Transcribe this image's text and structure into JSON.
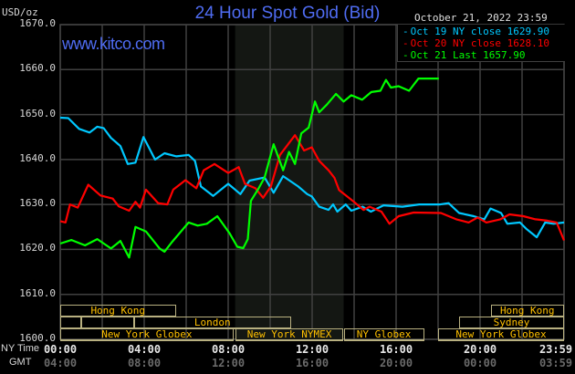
{
  "header": {
    "title": "24 Hour Spot Gold (Bid)",
    "brand": "www.kitco.com",
    "units": "USD/oz",
    "datestamp": "October 21, 2022 23:59"
  },
  "legend": [
    {
      "label": "Oct 19 NY close 1629.90",
      "color": "#00c8ff"
    },
    {
      "label": "Oct 20 NY close 1628.10",
      "color": "#ff0000"
    },
    {
      "label": "Oct 21 Last 1657.90",
      "color": "#00ff00"
    }
  ],
  "colors": {
    "background": "#000000",
    "grid": "#404040",
    "nymex_shade": "#141713",
    "session_border": "#b8b080",
    "session_text": "#ffc000",
    "title": "#4f6cf2"
  },
  "x_axis": {
    "row_labels": {
      "ny": "NY Time",
      "gmt": "GMT"
    },
    "ticks": [
      {
        "ny": "00:00",
        "gmt": "04:00"
      },
      {
        "ny": "04:00",
        "gmt": "08:00"
      },
      {
        "ny": "08:00",
        "gmt": "12:00"
      },
      {
        "ny": "12:00",
        "gmt": "16:00"
      },
      {
        "ny": "16:00",
        "gmt": "20:00"
      },
      {
        "ny": "20:00",
        "gmt": "00:00"
      },
      {
        "ny": "23:59",
        "gmt": "03:59"
      }
    ]
  },
  "sessions": [
    {
      "label": "Hong Kong",
      "start": "00:00",
      "end": "05:30",
      "row": 0
    },
    {
      "label": "Hong Kong",
      "start": "20:30",
      "end": "23:59",
      "row": 0
    },
    {
      "label": "",
      "start": "00:00",
      "end": "01:00",
      "row": 1
    },
    {
      "label": "",
      "start": "01:00",
      "end": "03:30",
      "row": 1
    },
    {
      "label": "London",
      "start": "03:30",
      "end": "11:00",
      "row": 1
    },
    {
      "label": "Sydney",
      "start": "19:00",
      "end": "23:59",
      "row": 1
    },
    {
      "label": "New York Globex",
      "start": "00:00",
      "end": "08:15",
      "row": 2
    },
    {
      "label": "New York NYMEX",
      "start": "08:20",
      "end": "13:30",
      "row": 2
    },
    {
      "label": "NY Globex",
      "start": "13:30",
      "end": "17:20",
      "row": 2
    },
    {
      "label": "New York Globex",
      "start": "18:00",
      "end": "23:59",
      "row": 2
    }
  ],
  "chart_data": {
    "type": "line",
    "title": "24 Hour Spot Gold (Bid)",
    "ylabel": "USD/oz",
    "xlabel": "NY Time",
    "ylim": [
      1600,
      1670
    ],
    "yticks": [
      "1670.0",
      "1660.0",
      "1650.0",
      "1640.0",
      "1630.0",
      "1620.0",
      "1610.0",
      "1600.0"
    ],
    "xlim": [
      "00:00",
      "23:59"
    ],
    "grid": true,
    "legend_position": "top-right",
    "nymex_shaded": [
      "08:20",
      "13:30"
    ],
    "series": [
      {
        "name": "Oct 19 NY close 1629.90",
        "color": "#00c8ff",
        "points": [
          [
            "00:00",
            1649.3
          ],
          [
            "00:23",
            1649.2
          ],
          [
            "00:54",
            1646.8
          ],
          [
            "01:24",
            1646
          ],
          [
            "01:46",
            1647.3
          ],
          [
            "02:04",
            1647
          ],
          [
            "02:25",
            1644.8
          ],
          [
            "02:52",
            1643
          ],
          [
            "03:13",
            1639
          ],
          [
            "03:35",
            1639.3
          ],
          [
            "03:58",
            1645
          ],
          [
            "04:31",
            1640
          ],
          [
            "04:58",
            1641.4
          ],
          [
            "05:32",
            1640.7
          ],
          [
            "06:07",
            1641
          ],
          [
            "06:25",
            1639.7
          ],
          [
            "06:42",
            1634
          ],
          [
            "07:17",
            1631.9
          ],
          [
            "08:00",
            1634.6
          ],
          [
            "08:35",
            1632.3
          ],
          [
            "09:01",
            1635.3
          ],
          [
            "09:44",
            1636
          ],
          [
            "10:10",
            1632.6
          ],
          [
            "10:37",
            1636.3
          ],
          [
            "11:20",
            1634
          ],
          [
            "11:46",
            1632.3
          ],
          [
            "11:59",
            1631.8
          ],
          [
            "12:20",
            1629.5
          ],
          [
            "12:47",
            1628.8
          ],
          [
            "13:00",
            1630
          ],
          [
            "13:12",
            1628.4
          ],
          [
            "13:36",
            1630
          ],
          [
            "13:52",
            1628.6
          ],
          [
            "14:24",
            1629.5
          ],
          [
            "14:48",
            1628.4
          ],
          [
            "15:24",
            1629.8
          ],
          [
            "16:18",
            1629.5
          ],
          [
            "17:06",
            1630
          ],
          [
            "18:06",
            1630
          ],
          [
            "18:30",
            1630.3
          ],
          [
            "19:00",
            1628.1
          ],
          [
            "19:42",
            1627.4
          ],
          [
            "20:12",
            1626.7
          ],
          [
            "20:30",
            1629.1
          ],
          [
            "21:00",
            1628.1
          ],
          [
            "21:18",
            1625.7
          ],
          [
            "21:54",
            1626
          ],
          [
            "22:12",
            1624.6
          ],
          [
            "22:42",
            1622.7
          ],
          [
            "23:06",
            1626
          ],
          [
            "23:30",
            1625.7
          ],
          [
            "23:59",
            1626
          ]
        ]
      },
      {
        "name": "Oct 20 NY close 1628.10",
        "color": "#ff0000",
        "points": [
          [
            "00:00",
            1626.3
          ],
          [
            "00:15",
            1626
          ],
          [
            "00:28",
            1630
          ],
          [
            "00:50",
            1629.3
          ],
          [
            "01:20",
            1634.4
          ],
          [
            "01:55",
            1632
          ],
          [
            "02:30",
            1631.3
          ],
          [
            "02:47",
            1629.6
          ],
          [
            "03:17",
            1628.6
          ],
          [
            "03:35",
            1630.6
          ],
          [
            "03:48",
            1629.3
          ],
          [
            "04:05",
            1633.3
          ],
          [
            "04:40",
            1630.3
          ],
          [
            "05:06",
            1630
          ],
          [
            "05:23",
            1633.3
          ],
          [
            "05:58",
            1635.4
          ],
          [
            "06:29",
            1633.6
          ],
          [
            "06:50",
            1637.6
          ],
          [
            "07:21",
            1639
          ],
          [
            "08:00",
            1637
          ],
          [
            "08:30",
            1638.3
          ],
          [
            "08:48",
            1634.6
          ],
          [
            "09:18",
            1633.6
          ],
          [
            "09:40",
            1631.5
          ],
          [
            "10:02",
            1634
          ],
          [
            "10:28",
            1641
          ],
          [
            "11:11",
            1645.4
          ],
          [
            "11:37",
            1642
          ],
          [
            "11:59",
            1642.7
          ],
          [
            "12:20",
            1639.7
          ],
          [
            "12:47",
            1637.6
          ],
          [
            "13:04",
            1635.9
          ],
          [
            "13:17",
            1633.2
          ],
          [
            "13:56",
            1630.8
          ],
          [
            "14:27",
            1628.8
          ],
          [
            "14:44",
            1629.5
          ],
          [
            "15:18",
            1628.4
          ],
          [
            "15:41",
            1625.7
          ],
          [
            "16:07",
            1627.4
          ],
          [
            "16:50",
            1628.2
          ],
          [
            "18:08",
            1628.1
          ],
          [
            "18:52",
            1626.7
          ],
          [
            "19:27",
            1626
          ],
          [
            "19:53",
            1627.1
          ],
          [
            "20:18",
            1626
          ],
          [
            "20:58",
            1626.7
          ],
          [
            "21:24",
            1627.8
          ],
          [
            "22:04",
            1627.4
          ],
          [
            "22:38",
            1626.7
          ],
          [
            "23:12",
            1626.4
          ],
          [
            "23:39",
            1626
          ],
          [
            "23:59",
            1622
          ]
        ]
      },
      {
        "name": "Oct 21 Last 1657.90",
        "color": "#00ff00",
        "points": [
          [
            "00:00",
            1621.3
          ],
          [
            "00:32",
            1622.1
          ],
          [
            "01:11",
            1620.9
          ],
          [
            "01:46",
            1622.3
          ],
          [
            "02:25",
            1620.2
          ],
          [
            "02:52",
            1621.9
          ],
          [
            "03:17",
            1618.2
          ],
          [
            "03:35",
            1625
          ],
          [
            "04:05",
            1624
          ],
          [
            "04:44",
            1620.2
          ],
          [
            "04:58",
            1619.5
          ],
          [
            "05:19",
            1621.6
          ],
          [
            "06:07",
            1626
          ],
          [
            "06:33",
            1625.3
          ],
          [
            "06:59",
            1625.7
          ],
          [
            "07:29",
            1627.4
          ],
          [
            "08:04",
            1623.6
          ],
          [
            "08:26",
            1620.6
          ],
          [
            "08:43",
            1620.3
          ],
          [
            "08:56",
            1622.3
          ],
          [
            "09:05",
            1630.8
          ],
          [
            "09:27",
            1633.6
          ],
          [
            "09:44",
            1636
          ],
          [
            "10:10",
            1643.4
          ],
          [
            "10:37",
            1637.6
          ],
          [
            "10:54",
            1641.7
          ],
          [
            "11:11",
            1639
          ],
          [
            "11:29",
            1645.8
          ],
          [
            "11:50",
            1647.1
          ],
          [
            "12:08",
            1652.9
          ],
          [
            "12:20",
            1650.5
          ],
          [
            "12:42",
            1652.2
          ],
          [
            "13:08",
            1654.6
          ],
          [
            "13:30",
            1652.9
          ],
          [
            "13:52",
            1654.3
          ],
          [
            "14:23",
            1653.3
          ],
          [
            "14:49",
            1655
          ],
          [
            "15:15",
            1655.3
          ],
          [
            "15:31",
            1657.7
          ],
          [
            "15:45",
            1656
          ],
          [
            "16:07",
            1656.3
          ],
          [
            "16:37",
            1655.3
          ],
          [
            "17:04",
            1658
          ],
          [
            "18:02",
            1658
          ]
        ]
      }
    ]
  }
}
